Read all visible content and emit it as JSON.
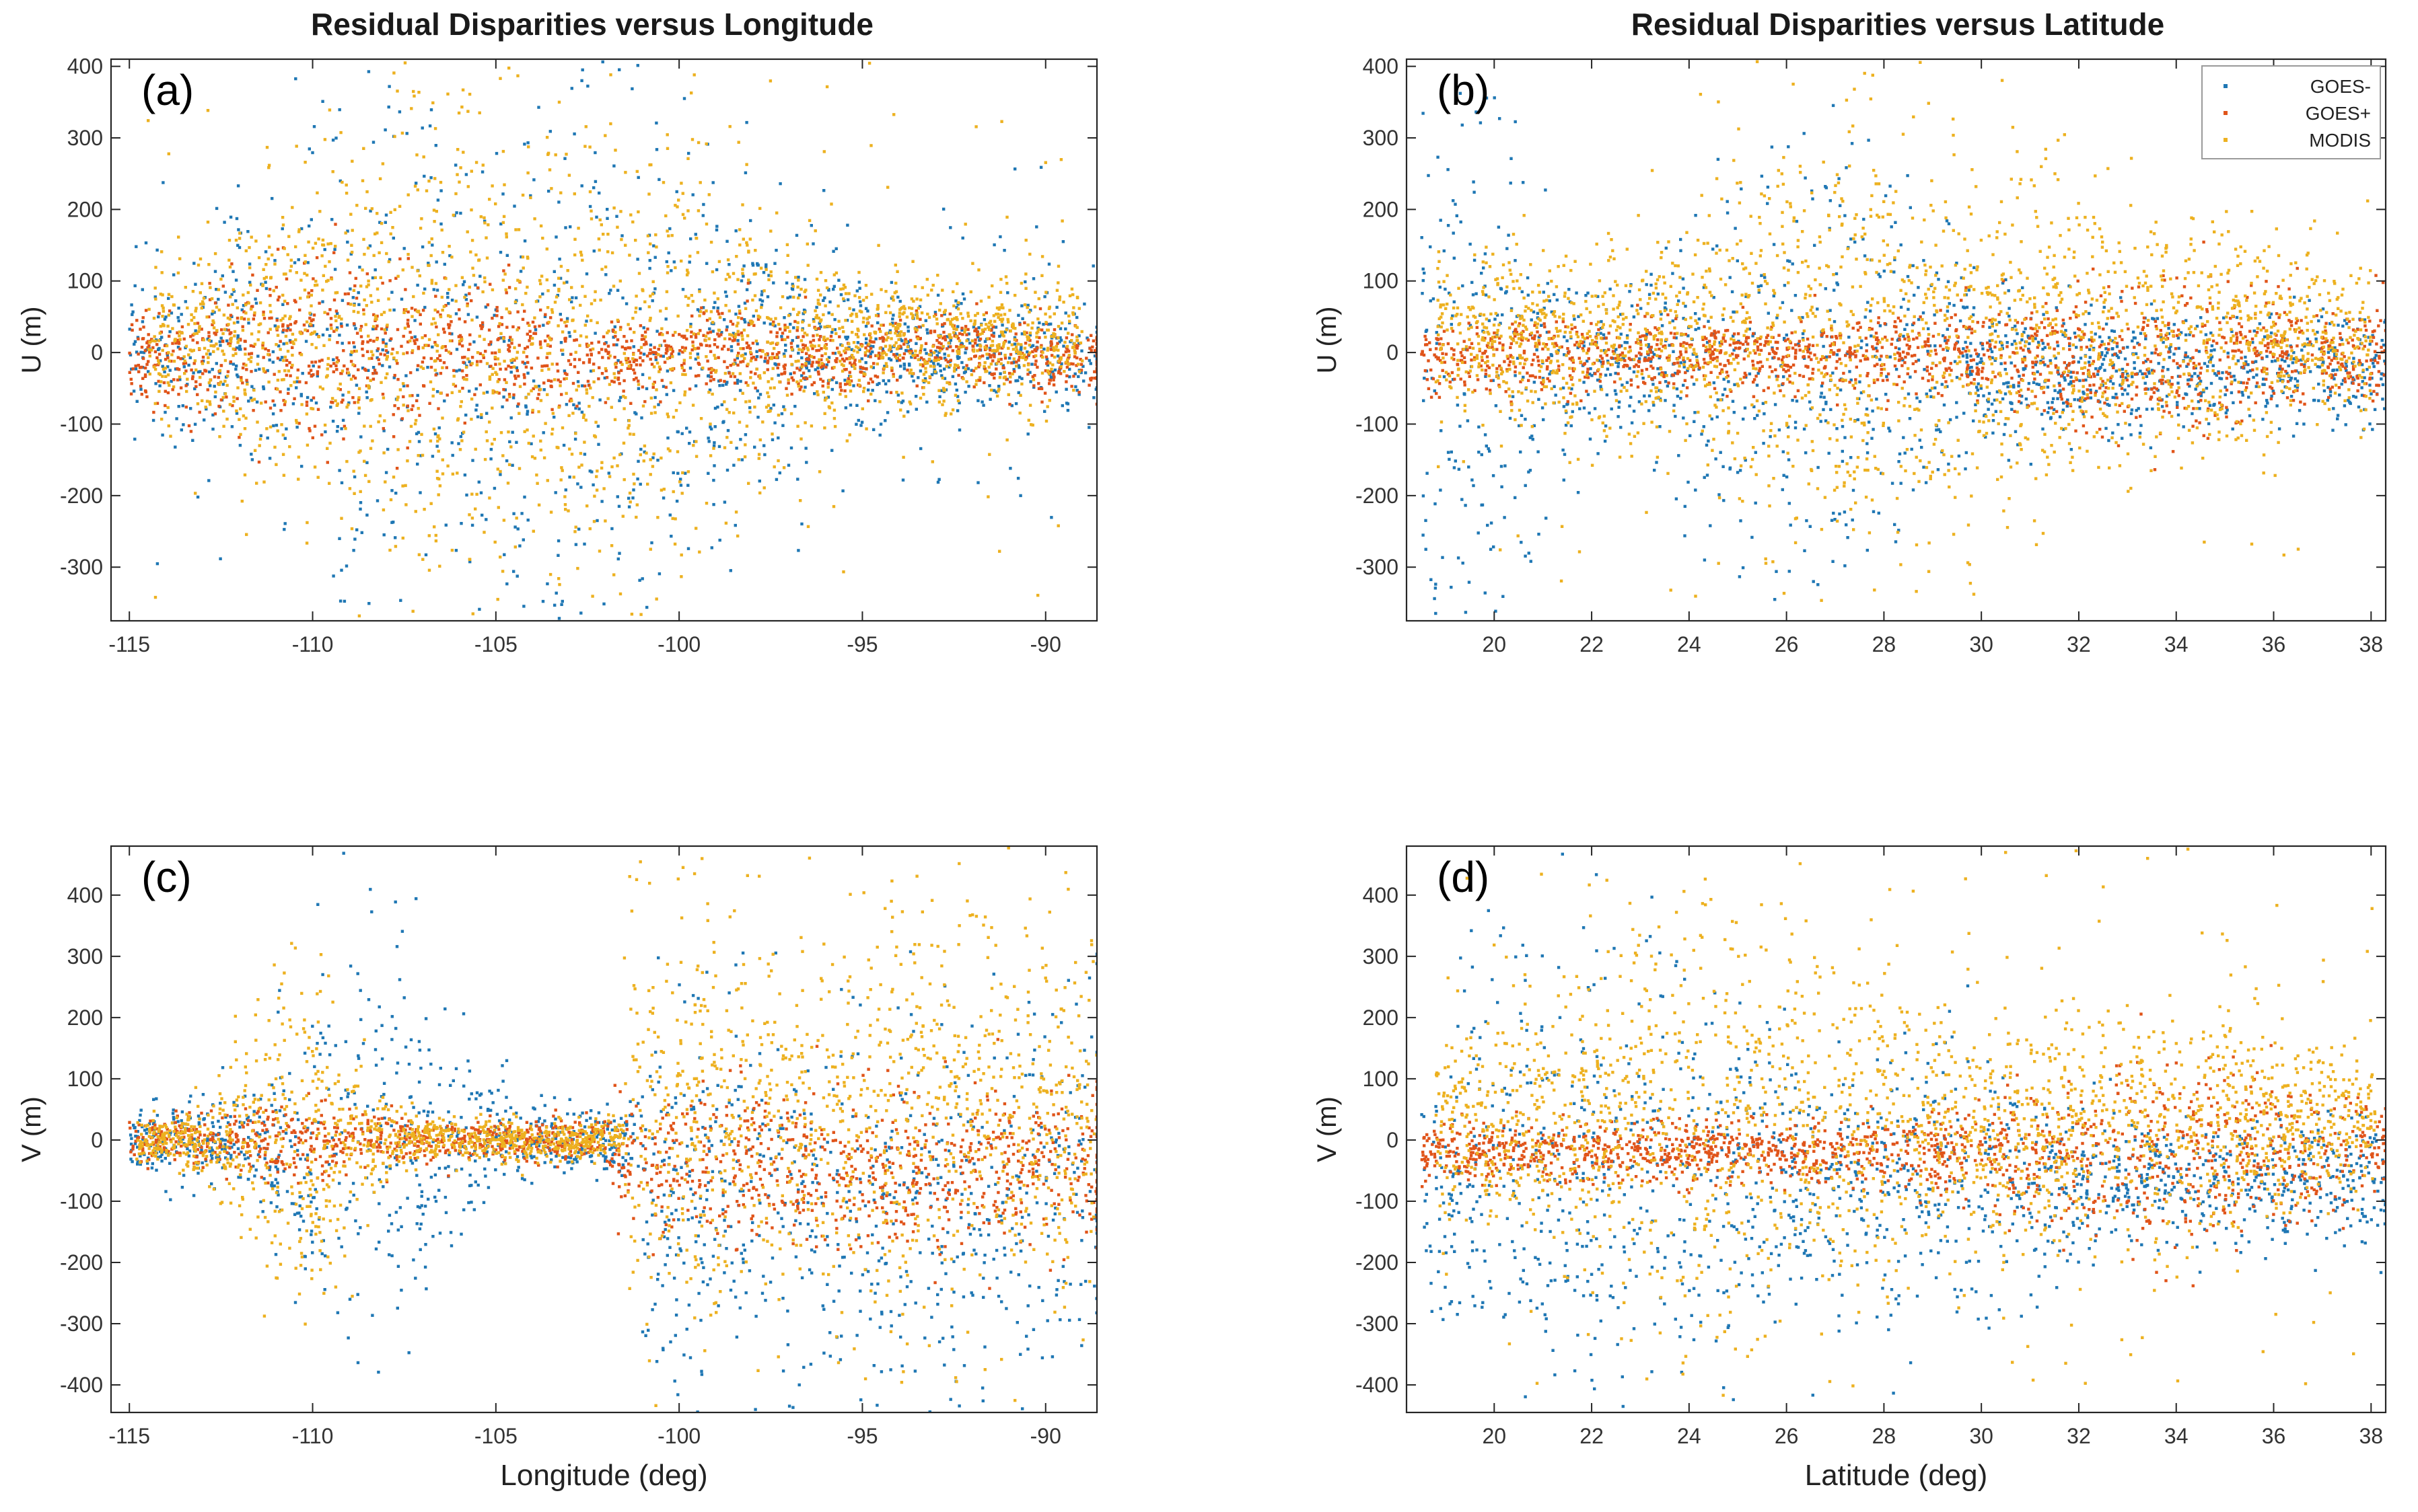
{
  "figure": {
    "title_left": "Residual Disparities versus Longitude",
    "title_right": "Residual Disparities versus Latitude"
  },
  "legend": {
    "location": "top-right of panel (b)",
    "entries": [
      {
        "name": "GOES-",
        "color": "#1f77b4"
      },
      {
        "name": "GOES+",
        "color": "#e0541a"
      },
      {
        "name": "MODIS",
        "color": "#edb120"
      }
    ]
  },
  "chart_data": [
    {
      "id": "a",
      "panel_label": "(a)",
      "type": "scatter",
      "title": "Residual Disparities versus Longitude",
      "xlabel": "",
      "ylabel": "U (m)",
      "xlim": [
        -115.5,
        -88.6
      ],
      "ylim": [
        -375,
        410
      ],
      "xticks": [
        -115,
        -110,
        -105,
        -100,
        -95,
        -90
      ],
      "yticks": [
        -300,
        -200,
        -100,
        0,
        100,
        200,
        300,
        400
      ],
      "x_var": "longitude",
      "series": [
        {
          "name": "GOES-",
          "color": "#1f77b4",
          "n_points": 1400,
          "summary": "centered near 0 m; spread up to about ±250 m between -112 and -97 deg, narrowing toward -89 deg"
        },
        {
          "name": "GOES+",
          "color": "#e0541a",
          "n_points": 1400,
          "summary": "dense band about ±60 m around 0 m across all longitudes"
        },
        {
          "name": "MODIS",
          "color": "#edb120",
          "n_points": 2200,
          "summary": "dense band about ±100 m, outliers reaching ±400 m between -111 and -99 deg"
        }
      ]
    },
    {
      "id": "b",
      "panel_label": "(b)",
      "type": "scatter",
      "title": "Residual Disparities versus Latitude",
      "xlabel": "",
      "ylabel": "U (m)",
      "xlim": [
        18.2,
        38.3
      ],
      "ylim": [
        -375,
        410
      ],
      "xticks": [
        20,
        22,
        24,
        26,
        28,
        30,
        32,
        34,
        36,
        38
      ],
      "yticks": [
        -300,
        -200,
        -100,
        0,
        100,
        200,
        300,
        400
      ],
      "x_var": "latitude",
      "series": [
        {
          "name": "GOES-",
          "color": "#1f77b4",
          "n_points": 1400,
          "summary": "largest spread near 19-21 and 23-28 deg, mostly negative below -50 m"
        },
        {
          "name": "GOES+",
          "color": "#e0541a",
          "n_points": 1400,
          "summary": "band about ±60 m around 0 m, slightly wider above 32 deg"
        },
        {
          "name": "MODIS",
          "color": "#edb120",
          "n_points": 2200,
          "summary": "band about ±120 m with outliers to ±400 m near 26-29 deg"
        }
      ]
    },
    {
      "id": "c",
      "panel_label": "(c)",
      "type": "scatter",
      "title": "",
      "xlabel": "Longitude (deg)",
      "ylabel": "V (m)",
      "xlim": [
        -115.5,
        -88.6
      ],
      "ylim": [
        -445,
        480
      ],
      "xticks": [
        -115,
        -110,
        -105,
        -100,
        -95,
        -90
      ],
      "yticks": [
        -400,
        -300,
        -200,
        -100,
        0,
        100,
        200,
        300,
        400
      ],
      "x_var": "longitude",
      "series": [
        {
          "name": "GOES-",
          "color": "#1f77b4",
          "n_points": 1400,
          "summary": "clusters to ±350 m near -110 to -107 deg; widespread -100 to -400 m east of -100 deg"
        },
        {
          "name": "GOES+",
          "color": "#e0541a",
          "n_points": 1400,
          "summary": "tight near 0 m west of -102 deg, widening to -150 to +100 m east of -100 deg"
        },
        {
          "name": "MODIS",
          "color": "#edb120",
          "n_points": 2200,
          "summary": "tight band near 0 m between -112 and -103 deg, fanning to ±450 m east of -101 deg"
        }
      ]
    },
    {
      "id": "d",
      "panel_label": "(d)",
      "type": "scatter",
      "title": "",
      "xlabel": "Latitude (deg)",
      "ylabel": "V (m)",
      "xlim": [
        18.2,
        38.3
      ],
      "ylim": [
        -445,
        480
      ],
      "xticks": [
        20,
        22,
        24,
        26,
        28,
        30,
        32,
        34,
        36,
        38
      ],
      "yticks": [
        -400,
        -300,
        -200,
        -100,
        0,
        100,
        200,
        300,
        400
      ],
      "x_var": "latitude",
      "series": [
        {
          "name": "GOES-",
          "color": "#1f77b4",
          "n_points": 1400,
          "summary": "mostly negative down to -400 m near 21-26 deg, some positive to +350 m near 19-22 deg"
        },
        {
          "name": "GOES+",
          "color": "#e0541a",
          "n_points": 1400,
          "summary": "band about ±80 m around 0 m, denser negative values 31-38 deg"
        },
        {
          "name": "MODIS",
          "color": "#edb120",
          "n_points": 2200,
          "summary": "broad band about ±150 m with outliers to ±450 m between 21 and 30 deg"
        }
      ]
    }
  ]
}
